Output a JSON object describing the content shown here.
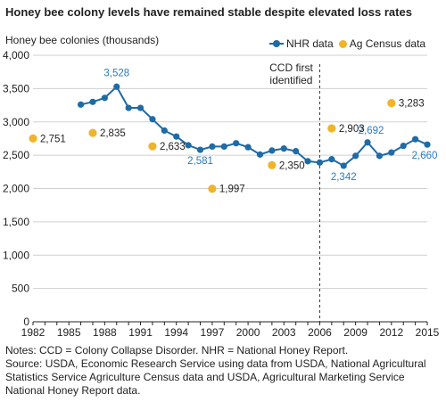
{
  "title": "Honey bee colony levels have remained stable despite elevated loss rates",
  "notes": [
    "Notes: CCD = Colony Collapse Disorder. NHR = National Honey Report.",
    "Source: USDA, Economic Research Service using data from USDA, National Agricultural Statistics Service Agriculture Census data and USDA, Agricultural Marketing Service National Honey Report data."
  ],
  "colors": {
    "nhr": "#1f6ba5",
    "census": "#f0b429",
    "nhr_label": "#2b7bbf"
  },
  "chart_data": {
    "type": "line",
    "title": "Honey bee colony levels have remained stable despite elevated loss rates",
    "ylabel": "Honey bee colonies (thousands)",
    "xlabel": "",
    "xlim": [
      1982,
      2015
    ],
    "ylim": [
      0,
      4000
    ],
    "x_ticks": [
      "1982",
      "1985",
      "1988",
      "1991",
      "1994",
      "1997",
      "2000",
      "2003",
      "2006",
      "2009",
      "2012",
      "2015"
    ],
    "y_ticks": [
      "0",
      "500",
      "1,000",
      "1,500",
      "2,000",
      "2,500",
      "3,000",
      "3,500",
      "4,000"
    ],
    "grid": true,
    "legend_position": "top-right",
    "series": [
      {
        "name": "NHR data",
        "type": "line",
        "x": [
          1986,
          1987,
          1988,
          1989,
          1990,
          1991,
          1992,
          1993,
          1994,
          1995,
          1996,
          1997,
          1998,
          1999,
          2000,
          2001,
          2002,
          2003,
          2004,
          2005,
          2006,
          2007,
          2008,
          2009,
          2010,
          2011,
          2012,
          2013,
          2014,
          2015
        ],
        "y": [
          3260,
          3300,
          3360,
          3528,
          3210,
          3210,
          3040,
          2870,
          2780,
          2650,
          2581,
          2630,
          2630,
          2680,
          2620,
          2510,
          2570,
          2600,
          2560,
          2410,
          2390,
          2440,
          2342,
          2490,
          2692,
          2490,
          2540,
          2640,
          2740,
          2660
        ]
      },
      {
        "name": "Ag Census data",
        "type": "scatter",
        "x": [
          1982,
          1987,
          1992,
          1997,
          2002,
          2007,
          2012
        ],
        "y": [
          2751,
          2835,
          2633,
          1997,
          2350,
          2903,
          3283
        ]
      }
    ],
    "data_labels": [
      {
        "series": "NHR data",
        "x": 1989,
        "text": "3,528"
      },
      {
        "series": "NHR data",
        "x": 1996,
        "text": "2,581"
      },
      {
        "series": "NHR data",
        "x": 2008,
        "text": "2,342"
      },
      {
        "series": "NHR data",
        "x": 2010,
        "text": "2,692"
      },
      {
        "series": "NHR data",
        "x": 2015,
        "text": "2,660"
      },
      {
        "series": "Ag Census data",
        "x": 1982,
        "text": "2,751"
      },
      {
        "series": "Ag Census data",
        "x": 1987,
        "text": "2,835"
      },
      {
        "series": "Ag Census data",
        "x": 1992,
        "text": "2,633"
      },
      {
        "series": "Ag Census data",
        "x": 1997,
        "text": "1,997"
      },
      {
        "series": "Ag Census data",
        "x": 2002,
        "text": "2,350"
      },
      {
        "series": "Ag Census data",
        "x": 2007,
        "text": "2,903"
      },
      {
        "series": "Ag Census data",
        "x": 2012,
        "text": "3,283"
      }
    ],
    "annotations": [
      {
        "x": 2006,
        "style": "dashed-vertical-line",
        "text_lines": [
          "CCD first",
          "identified"
        ]
      }
    ]
  }
}
